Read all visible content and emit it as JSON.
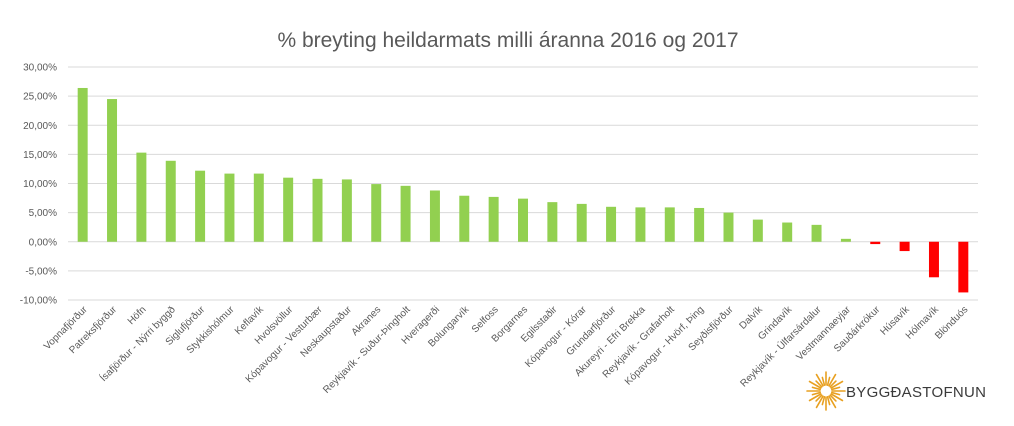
{
  "chart_data": {
    "type": "bar",
    "title": "% breyting heildarmats milli áranna 2016 og 2017",
    "xlabel": "",
    "ylabel": "",
    "ylim": [
      -0.1,
      0.3
    ],
    "yticks": [
      0.3,
      0.25,
      0.2,
      0.15,
      0.1,
      0.05,
      0.0,
      -0.05,
      -0.1
    ],
    "ytick_labels": [
      "30,00%",
      "25,00%",
      "20,00%",
      "15,00%",
      "10,00%",
      "5,00%",
      "0,00%",
      "-5,00%",
      "-10,00%"
    ],
    "grid": true,
    "legend": "none",
    "colors": {
      "positive": "#92d050",
      "negative": "#ff0000"
    },
    "categories": [
      "Vopnafjörður",
      "Patreksfjörður",
      "Höfn",
      "Ísafjörður - Nýrri byggð",
      "Siglufjörður",
      "Stykkishólmur",
      "Keflavík",
      "Hvolsvöllur",
      "Kópavogur - Vesturbær",
      "Neskaupstaður",
      "Akranes",
      "Reykjavík - Suður-Þingholt",
      "Hveragerði",
      "Bolungarvík",
      "Selfoss",
      "Borgarnes",
      "Egilsstaðir",
      "Kópavogur - Kórar",
      "Grundarfjörður",
      "Akureyri - Efri Brekka",
      "Reykjavík - Grafarholt",
      "Kópavogur - Hvörf, Þing",
      "Seyðisfjörður",
      "Dalvík",
      "Grindavík",
      "Reykjavík - Úlfarsárdalur",
      "Vestmannaeyjar",
      "Sauðárkrókur",
      "Húsavík",
      "Hólmavík",
      "Blönduós"
    ],
    "values": [
      0.264,
      0.245,
      0.153,
      0.139,
      0.122,
      0.117,
      0.117,
      0.11,
      0.108,
      0.107,
      0.099,
      0.096,
      0.088,
      0.079,
      0.077,
      0.074,
      0.068,
      0.065,
      0.06,
      0.059,
      0.059,
      0.058,
      0.05,
      0.038,
      0.033,
      0.029,
      0.005,
      -0.004,
      -0.016,
      -0.061,
      -0.087
    ]
  },
  "logo": {
    "name": "BYGGÐASTOFNUN",
    "color": "#e8a020"
  }
}
